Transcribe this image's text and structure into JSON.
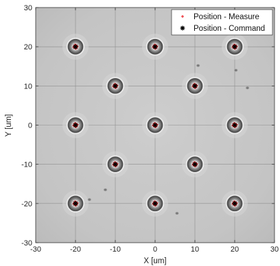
{
  "chart_data": {
    "type": "scatter",
    "xlabel": "X [um]",
    "ylabel": "Y [um]",
    "xlim": [
      -30,
      30
    ],
    "ylim": [
      -30,
      30
    ],
    "xticks": [
      -30,
      -20,
      -10,
      0,
      10,
      20,
      30
    ],
    "yticks": [
      -30,
      -20,
      -10,
      0,
      10,
      20,
      30
    ],
    "grid": true,
    "legend_position": "top-right",
    "background": "microscope image",
    "series": [
      {
        "name": "Position - Measure",
        "marker": "+",
        "color": "#e8141a",
        "x": [
          -20,
          0,
          20,
          -10,
          10,
          -20,
          0,
          20,
          -10,
          10,
          -20,
          0,
          20
        ],
        "y": [
          20,
          20,
          20,
          10,
          10,
          0,
          0,
          0,
          -10,
          -10,
          -20,
          -20,
          -20
        ]
      },
      {
        "name": "Position - Command",
        "marker": "*",
        "color": "#000000",
        "x": [
          -20,
          0,
          20,
          -10,
          10,
          -20,
          0,
          20,
          -10,
          10,
          -20,
          0,
          20
        ],
        "y": [
          20,
          20,
          20,
          10,
          10,
          0,
          0,
          0,
          -10,
          -10,
          -20,
          -20,
          -20
        ]
      }
    ],
    "particles": [
      {
        "x": 10.8,
        "y": 15.2
      },
      {
        "x": 20.3,
        "y": 14.0
      },
      {
        "x": 23.2,
        "y": 9.5
      },
      {
        "x": -12.5,
        "y": -16.5
      },
      {
        "x": -16.5,
        "y": -19.0
      },
      {
        "x": 5.5,
        "y": -22.5
      }
    ]
  }
}
